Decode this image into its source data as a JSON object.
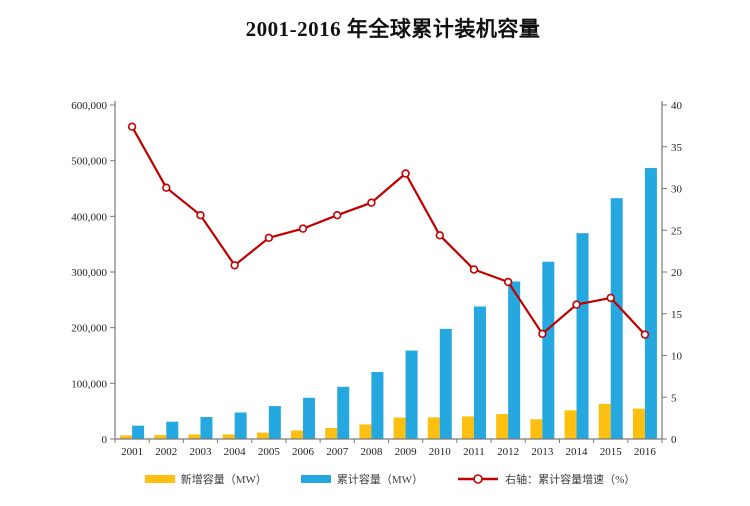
{
  "title": "2001-2016 年全球累计装机容量",
  "chart_data": {
    "type": "bar",
    "subtype": "bar+line combo, dual axis",
    "title": "2001-2016 年全球累计装机容量",
    "categories": [
      "2001",
      "2002",
      "2003",
      "2004",
      "2005",
      "2006",
      "2007",
      "2008",
      "2009",
      "2010",
      "2011",
      "2012",
      "2013",
      "2014",
      "2015",
      "2016"
    ],
    "series": [
      {
        "name": "新增容量（MW）",
        "type": "bar",
        "axis": "left",
        "color": "#fdc010",
        "values": [
          6500,
          7270,
          8130,
          8210,
          11530,
          15240,
          19870,
          26280,
          38470,
          38830,
          40560,
          44800,
          35470,
          51470,
          63010,
          54600
        ]
      },
      {
        "name": "累计容量（MW）",
        "type": "bar",
        "axis": "left",
        "color": "#25a8e0",
        "values": [
          23900,
          31100,
          39430,
          47620,
          59090,
          74050,
          93820,
          120290,
          158860,
          197690,
          238110,
          282850,
          318460,
          369700,
          432680,
          486790
        ]
      },
      {
        "name": "右轴：累计容量增速（%）",
        "type": "line",
        "axis": "right",
        "color": "#c00000",
        "marker": "open-circle",
        "values": [
          37.4,
          30.1,
          26.8,
          20.8,
          24.1,
          25.2,
          26.8,
          28.3,
          31.8,
          24.4,
          20.3,
          18.8,
          12.6,
          16.1,
          16.9,
          12.5
        ]
      }
    ],
    "left_axis": {
      "min": 0,
      "max": 600000,
      "step": 100000,
      "tick_labels": [
        "0",
        "100,000",
        "200,000",
        "300,000",
        "400,000",
        "500,000",
        "600,000"
      ],
      "format": "thousands-comma"
    },
    "right_axis": {
      "min": 0,
      "max": 40,
      "step": 5,
      "tick_labels": [
        "0",
        "5",
        "10",
        "15",
        "20",
        "25",
        "30",
        "35",
        "40"
      ]
    },
    "legend_position": "bottom",
    "grid": false,
    "axis_color": "#7a7a7a",
    "text_color": "#1f1f1f"
  }
}
